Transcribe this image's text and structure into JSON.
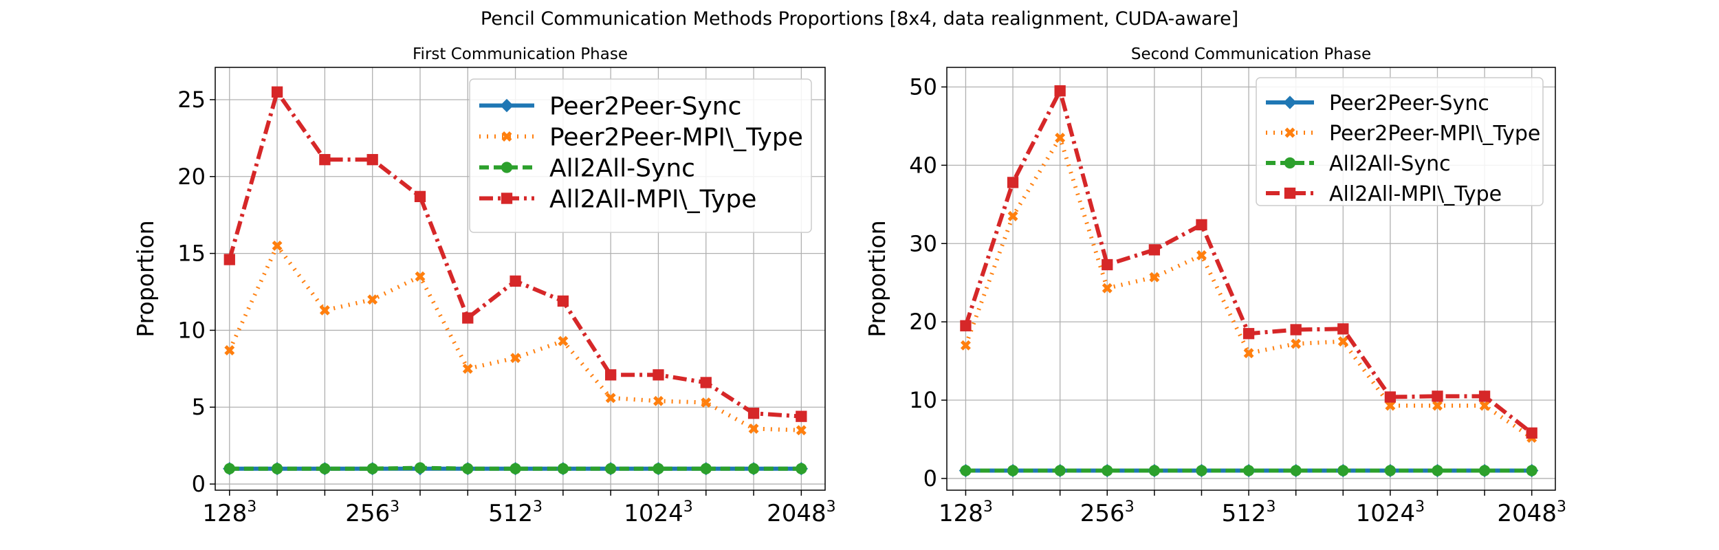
{
  "figure": {
    "title": "Pencil Communication Methods Proportions [8x4, data realignment, CUDA-aware]"
  },
  "series_styles": {
    "Peer2Peer-Sync": {
      "color": "#1f77b4",
      "marker": "diamond",
      "dash": "solid"
    },
    "Peer2Peer-MPI\\_Type": {
      "color": "#ff7f0e",
      "marker": "x",
      "dash": "dotted"
    },
    "All2All-Sync": {
      "color": "#2ca02c",
      "marker": "circle",
      "dash": "dashed"
    },
    "All2All-MPI\\_Type": {
      "color": "#d62728",
      "marker": "square",
      "dash": "dashdot"
    }
  },
  "chart_data": [
    {
      "type": "line",
      "title": "First Communication Phase",
      "xlabel": "",
      "ylabel": "Proportion",
      "x": [
        1,
        2,
        3,
        4,
        5,
        6,
        7,
        8,
        9,
        10,
        11,
        12,
        13
      ],
      "xtick_positions": [
        1,
        4,
        7,
        10,
        13
      ],
      "xtick_labels": [
        {
          "base": "128",
          "exp": "3"
        },
        {
          "base": "256",
          "exp": "3"
        },
        {
          "base": "512",
          "exp": "3"
        },
        {
          "base": "1024",
          "exp": "3"
        },
        {
          "base": "2048",
          "exp": "3"
        }
      ],
      "xlim": [
        0.7,
        13.5
      ],
      "ylim": [
        -0.4,
        27.1
      ],
      "yticks": [
        0,
        5,
        10,
        15,
        20,
        25
      ],
      "grid": true,
      "legend_position": "upper-right",
      "series": [
        {
          "name": "Peer2Peer-Sync",
          "values": [
            1.0,
            1.0,
            1.0,
            1.0,
            1.0,
            1.0,
            1.0,
            1.0,
            1.0,
            1.0,
            1.0,
            1.0,
            1.0
          ]
        },
        {
          "name": "Peer2Peer-MPI\\_Type",
          "values": [
            8.7,
            15.5,
            11.3,
            12.0,
            13.5,
            7.5,
            8.2,
            9.3,
            5.6,
            5.4,
            5.3,
            3.6,
            3.5
          ]
        },
        {
          "name": "All2All-Sync",
          "values": [
            1.0,
            1.0,
            1.0,
            1.0,
            1.05,
            1.0,
            1.0,
            1.0,
            1.0,
            1.0,
            1.0,
            1.0,
            1.0
          ]
        },
        {
          "name": "All2All-MPI\\_Type",
          "values": [
            14.6,
            25.5,
            21.1,
            21.1,
            18.7,
            10.8,
            13.2,
            11.9,
            7.1,
            7.1,
            6.6,
            4.6,
            4.4
          ]
        }
      ]
    },
    {
      "type": "line",
      "title": "Second Communication Phase",
      "xlabel": "",
      "ylabel": "Proportion",
      "x": [
        1,
        2,
        3,
        4,
        5,
        6,
        7,
        8,
        9,
        10,
        11,
        12,
        13
      ],
      "xtick_positions": [
        1,
        4,
        7,
        10,
        13
      ],
      "xtick_labels": [
        {
          "base": "128",
          "exp": "3"
        },
        {
          "base": "256",
          "exp": "3"
        },
        {
          "base": "512",
          "exp": "3"
        },
        {
          "base": "1024",
          "exp": "3"
        },
        {
          "base": "2048",
          "exp": "3"
        }
      ],
      "xlim": [
        0.6,
        13.5
      ],
      "ylim": [
        -1.5,
        52.5
      ],
      "yticks": [
        0,
        10,
        20,
        30,
        40,
        50
      ],
      "grid": true,
      "legend_position": "upper-right",
      "series": [
        {
          "name": "Peer2Peer-Sync",
          "values": [
            1.0,
            1.0,
            1.0,
            1.0,
            1.0,
            1.0,
            1.0,
            1.0,
            1.0,
            1.0,
            1.0,
            1.0,
            1.0
          ]
        },
        {
          "name": "Peer2Peer-MPI\\_Type",
          "values": [
            17.0,
            33.5,
            43.5,
            24.3,
            25.7,
            28.5,
            16.0,
            17.2,
            17.5,
            9.3,
            9.3,
            9.3,
            5.2
          ]
        },
        {
          "name": "All2All-Sync",
          "values": [
            1.0,
            1.0,
            1.0,
            1.0,
            1.0,
            1.0,
            1.0,
            1.0,
            1.0,
            1.0,
            1.0,
            1.0,
            1.0
          ]
        },
        {
          "name": "All2All-MPI\\_Type",
          "values": [
            19.5,
            37.8,
            49.5,
            27.3,
            29.2,
            32.4,
            18.5,
            19.0,
            19.1,
            10.4,
            10.5,
            10.5,
            5.8
          ]
        }
      ]
    }
  ]
}
